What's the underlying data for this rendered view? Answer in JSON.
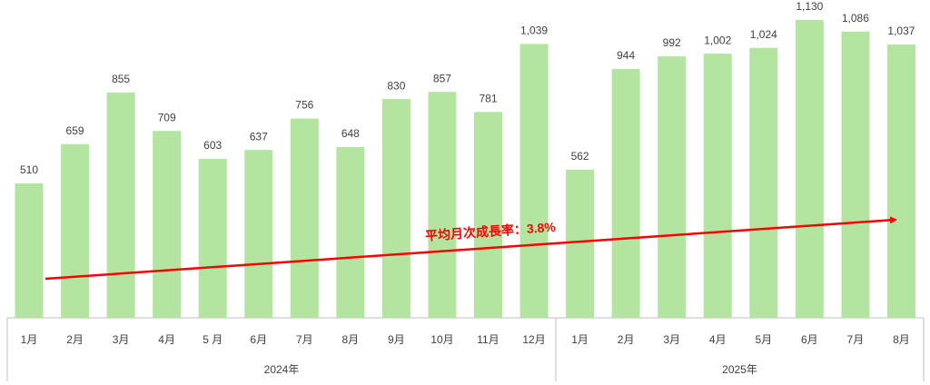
{
  "chart_data": {
    "type": "bar",
    "color": "#b3e5a1",
    "groups": [
      {
        "label": "2024年",
        "categories": [
          "1月",
          "2月",
          "3月",
          "4月",
          "5 月",
          "6月",
          "7月",
          "8月",
          "9月",
          "10月",
          "11月",
          "12月"
        ]
      },
      {
        "label": "2025年",
        "categories": [
          "1月",
          "2月",
          "3月",
          "4月",
          "5月",
          "6月",
          "7月",
          "8月"
        ]
      }
    ],
    "values": [
      510,
      659,
      855,
      709,
      603,
      637,
      756,
      648,
      830,
      857,
      781,
      1039,
      562,
      944,
      992,
      1002,
      1024,
      1130,
      1086,
      1037
    ],
    "value_labels": [
      "510",
      "659",
      "855",
      "709",
      "603",
      "637",
      "756",
      "648",
      "830",
      "857",
      "781",
      "1,039",
      "562",
      "944",
      "992",
      "1,002",
      "1,024",
      "1,130",
      "1,086",
      "1,037"
    ],
    "annotation": "平均月次成長率：3.8%"
  }
}
